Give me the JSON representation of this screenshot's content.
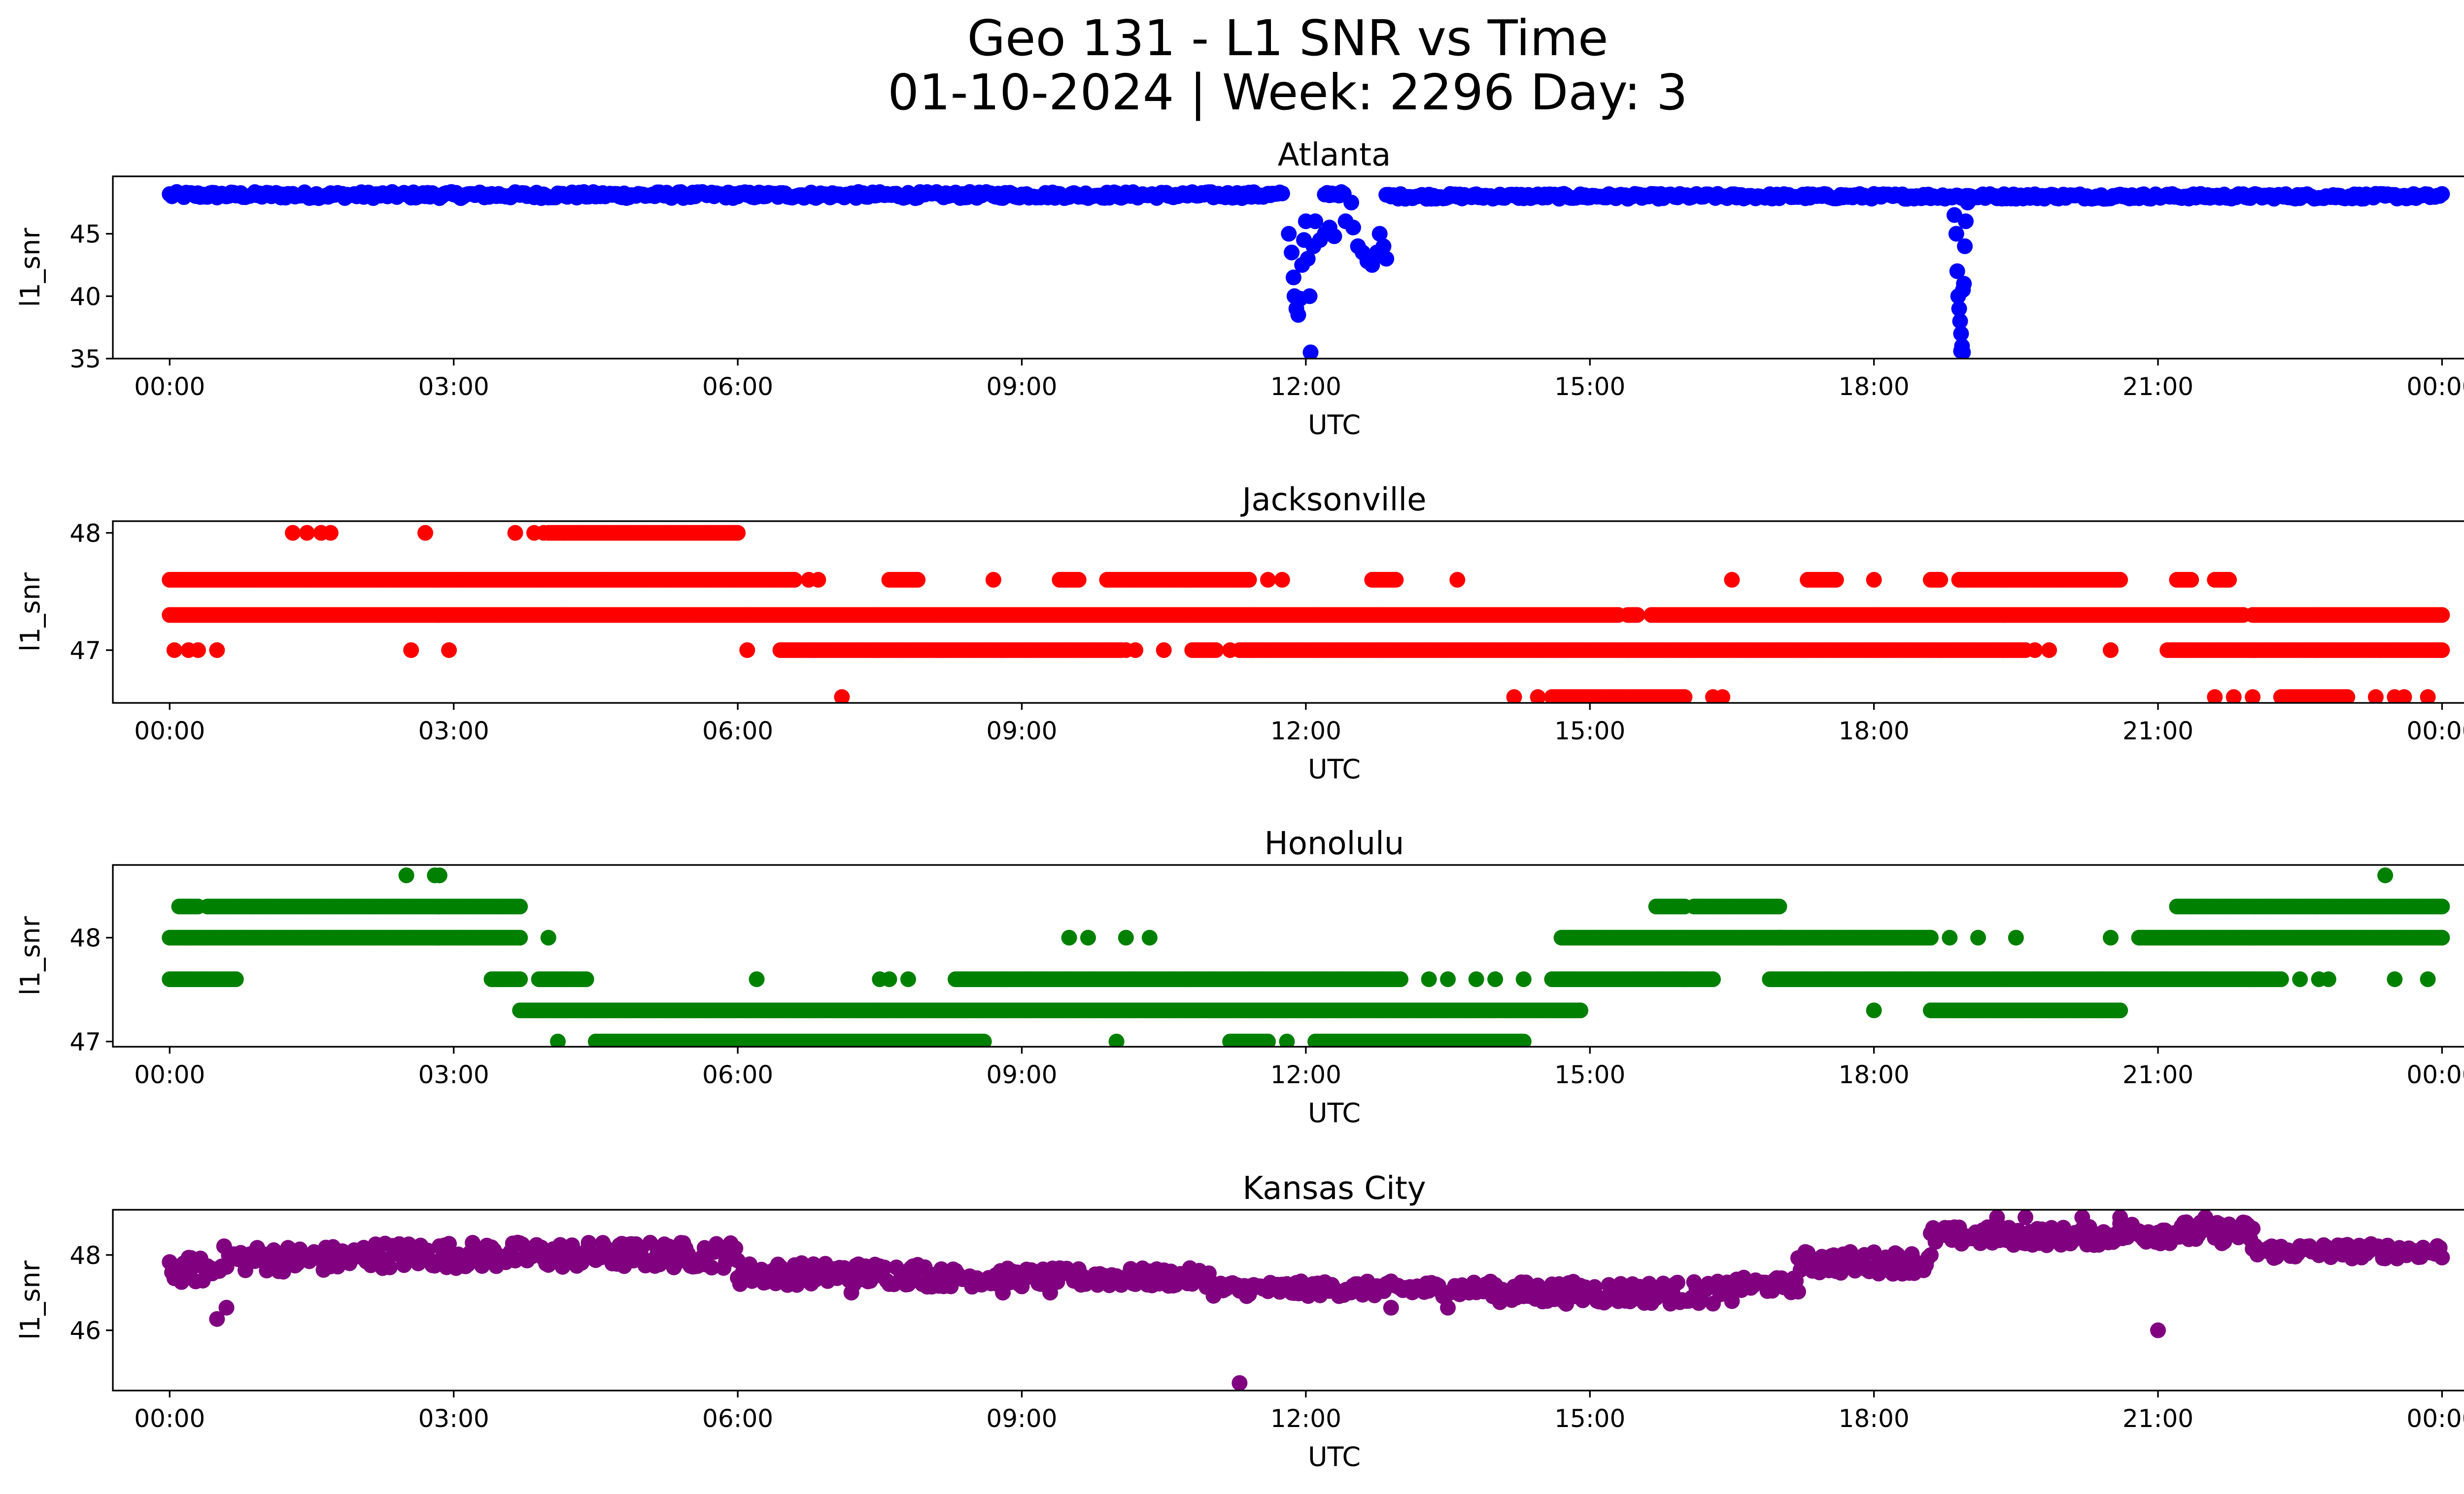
{
  "figure": {
    "title_line1": "Geo 131 - L1 SNR vs Time",
    "title_line2": "01-10-2024 | Week: 2296 Day: 3"
  },
  "chart_data": [
    {
      "type": "scatter",
      "title": "Atlanta",
      "xlabel": "UTC",
      "ylabel": "l1_snr",
      "color": "#0000ff",
      "x_unit": "hours UTC",
      "xlim": [
        -0.6,
        25.2
      ],
      "xticks": [
        0,
        3,
        6,
        9,
        12,
        15,
        18,
        21,
        24
      ],
      "xtick_labels": [
        "00:00",
        "03:00",
        "06:00",
        "09:00",
        "12:00",
        "15:00",
        "18:00",
        "21:00",
        "00:00"
      ],
      "ylim": [
        35,
        49.6
      ],
      "yticks": [
        35,
        40,
        45
      ],
      "ytick_labels": [
        "35",
        "40",
        "45"
      ],
      "segments": [
        {
          "x_start": 0.0,
          "x_end": 11.75,
          "y": 48.1,
          "spread": 0.5
        },
        {
          "x_start": 12.2,
          "x_end": 12.4,
          "y": 48.2,
          "spread": 0.3
        },
        {
          "x_start": 12.85,
          "x_end": 24.0,
          "y": 48.0,
          "spread": 0.4
        }
      ],
      "points": [
        [
          11.82,
          45.0
        ],
        [
          11.85,
          43.5
        ],
        [
          11.87,
          41.5
        ],
        [
          11.88,
          40.0
        ],
        [
          11.9,
          39.0
        ],
        [
          11.92,
          38.5
        ],
        [
          11.94,
          39.8
        ],
        [
          11.96,
          42.5
        ],
        [
          11.98,
          44.5
        ],
        [
          12.0,
          46.0
        ],
        [
          12.02,
          43.0
        ],
        [
          12.04,
          40.0
        ],
        [
          12.05,
          35.5
        ],
        [
          12.08,
          44.0
        ],
        [
          12.1,
          46.0
        ],
        [
          12.15,
          44.5
        ],
        [
          12.2,
          45.0
        ],
        [
          12.25,
          45.5
        ],
        [
          12.3,
          44.8
        ],
        [
          12.42,
          46.0
        ],
        [
          12.48,
          47.5
        ],
        [
          12.5,
          45.5
        ],
        [
          12.55,
          44.0
        ],
        [
          12.6,
          43.5
        ],
        [
          12.65,
          42.8
        ],
        [
          12.7,
          42.5
        ],
        [
          12.75,
          43.5
        ],
        [
          12.78,
          45.0
        ],
        [
          12.82,
          44.0
        ],
        [
          12.85,
          43.0
        ],
        [
          18.85,
          46.5
        ],
        [
          18.87,
          45.0
        ],
        [
          18.88,
          42.0
        ],
        [
          18.89,
          40.0
        ],
        [
          18.9,
          39.0
        ],
        [
          18.91,
          38.0
        ],
        [
          18.92,
          37.0
        ],
        [
          18.93,
          36.0
        ],
        [
          18.94,
          35.5
        ],
        [
          18.95,
          41.0
        ],
        [
          18.96,
          44.0
        ],
        [
          18.97,
          46.0
        ],
        [
          18.99,
          47.5
        ],
        [
          18.92,
          35.6
        ],
        [
          18.94,
          40.5
        ]
      ]
    },
    {
      "type": "scatter",
      "title": "Jacksonville",
      "xlabel": "UTC",
      "ylabel": "l1_snr",
      "color": "#ff0000",
      "x_unit": "hours UTC",
      "xlim": [
        -0.6,
        25.2
      ],
      "xticks": [
        0,
        3,
        6,
        9,
        12,
        15,
        18,
        21,
        24
      ],
      "xtick_labels": [
        "00:00",
        "03:00",
        "06:00",
        "09:00",
        "12:00",
        "15:00",
        "18:00",
        "21:00",
        "00:00"
      ],
      "ylim": [
        46.55,
        48.1
      ],
      "yticks": [
        47,
        48
      ],
      "ytick_labels": [
        "47",
        "48"
      ],
      "segments": [
        {
          "x_start": 0.0,
          "x_end": 6.6,
          "y": 47.6,
          "spread": 0
        },
        {
          "x_start": 7.6,
          "x_end": 7.9,
          "y": 47.6,
          "spread": 0
        },
        {
          "x_start": 9.4,
          "x_end": 9.6,
          "y": 47.6,
          "spread": 0
        },
        {
          "x_start": 9.9,
          "x_end": 11.4,
          "y": 47.6,
          "spread": 0
        },
        {
          "x_start": 12.7,
          "x_end": 12.95,
          "y": 47.6,
          "spread": 0
        },
        {
          "x_start": 17.3,
          "x_end": 17.6,
          "y": 47.6,
          "spread": 0
        },
        {
          "x_start": 18.6,
          "x_end": 18.7,
          "y": 47.6,
          "spread": 0
        },
        {
          "x_start": 18.9,
          "x_end": 20.6,
          "y": 47.6,
          "spread": 0
        },
        {
          "x_start": 21.2,
          "x_end": 21.35,
          "y": 47.6,
          "spread": 0
        },
        {
          "x_start": 21.6,
          "x_end": 21.75,
          "y": 47.6,
          "spread": 0
        },
        {
          "x_start": 0.0,
          "x_end": 15.3,
          "y": 47.3,
          "spread": 0
        },
        {
          "x_start": 15.4,
          "x_end": 15.5,
          "y": 47.3,
          "spread": 0
        },
        {
          "x_start": 15.65,
          "x_end": 21.9,
          "y": 47.3,
          "spread": 0
        },
        {
          "x_start": 22.0,
          "x_end": 24.0,
          "y": 47.3,
          "spread": 0
        },
        {
          "x_start": 6.45,
          "x_end": 10.05,
          "y": 47.0,
          "spread": 0
        },
        {
          "x_start": 10.8,
          "x_end": 11.05,
          "y": 47.0,
          "spread": 0
        },
        {
          "x_start": 11.3,
          "x_end": 19.6,
          "y": 47.0,
          "spread": 0
        },
        {
          "x_start": 21.1,
          "x_end": 24.0,
          "y": 47.0,
          "spread": 0
        },
        {
          "x_start": 4.0,
          "x_end": 6.0,
          "y": 48.0,
          "spread": 0
        },
        {
          "x_start": 22.3,
          "x_end": 23.0,
          "y": 46.6,
          "spread": 0
        },
        {
          "x_start": 14.6,
          "x_end": 16.0,
          "y": 46.6,
          "spread": 0
        }
      ],
      "points": [
        [
          1.3,
          48.0
        ],
        [
          1.45,
          48.0
        ],
        [
          1.6,
          48.0
        ],
        [
          1.7,
          48.0
        ],
        [
          2.7,
          48.0
        ],
        [
          3.65,
          48.0
        ],
        [
          3.85,
          48.0
        ],
        [
          3.95,
          48.0
        ],
        [
          0.05,
          47.0
        ],
        [
          0.2,
          47.0
        ],
        [
          0.3,
          47.0
        ],
        [
          0.5,
          47.0
        ],
        [
          2.55,
          47.0
        ],
        [
          2.95,
          47.0
        ],
        [
          6.1,
          47.0
        ],
        [
          10.1,
          47.0
        ],
        [
          10.2,
          47.0
        ],
        [
          10.5,
          47.0
        ],
        [
          11.2,
          47.0
        ],
        [
          19.7,
          47.0
        ],
        [
          19.85,
          47.0
        ],
        [
          20.5,
          47.0
        ],
        [
          6.75,
          47.6
        ],
        [
          6.85,
          47.6
        ],
        [
          8.7,
          47.6
        ],
        [
          11.6,
          47.6
        ],
        [
          11.75,
          47.6
        ],
        [
          13.6,
          47.6
        ],
        [
          16.5,
          47.6
        ],
        [
          18.0,
          47.6
        ],
        [
          7.1,
          46.6
        ],
        [
          14.2,
          46.6
        ],
        [
          14.45,
          46.6
        ],
        [
          16.3,
          46.6
        ],
        [
          16.4,
          46.6
        ],
        [
          21.6,
          46.6
        ],
        [
          21.8,
          46.6
        ],
        [
          22.0,
          46.6
        ],
        [
          23.3,
          46.6
        ],
        [
          23.5,
          46.6
        ],
        [
          23.6,
          46.6
        ],
        [
          23.85,
          46.6
        ]
      ]
    },
    {
      "type": "scatter",
      "title": "Honolulu",
      "xlabel": "UTC",
      "ylabel": "l1_snr",
      "color": "#008000",
      "x_unit": "hours UTC",
      "xlim": [
        -0.6,
        25.2
      ],
      "xticks": [
        0,
        3,
        6,
        9,
        12,
        15,
        18,
        21,
        24
      ],
      "xtick_labels": [
        "00:00",
        "03:00",
        "06:00",
        "09:00",
        "12:00",
        "15:00",
        "18:00",
        "21:00",
        "00:00"
      ],
      "ylim": [
        46.95,
        48.7
      ],
      "yticks": [
        47,
        48
      ],
      "ytick_labels": [
        "47",
        "48"
      ],
      "segments": [
        {
          "x_start": 0.0,
          "x_end": 3.7,
          "y": 48.0,
          "spread": 0
        },
        {
          "x_start": 0.1,
          "x_end": 0.3,
          "y": 48.3,
          "spread": 0
        },
        {
          "x_start": 0.4,
          "x_end": 3.7,
          "y": 48.3,
          "spread": 0
        },
        {
          "x_start": 0.0,
          "x_end": 0.7,
          "y": 47.6,
          "spread": 0
        },
        {
          "x_start": 3.4,
          "x_end": 3.7,
          "y": 47.6,
          "spread": 0
        },
        {
          "x_start": 3.9,
          "x_end": 4.4,
          "y": 47.6,
          "spread": 0
        },
        {
          "x_start": 3.7,
          "x_end": 14.9,
          "y": 47.3,
          "spread": 0
        },
        {
          "x_start": 4.5,
          "x_end": 8.6,
          "y": 47.0,
          "spread": 0
        },
        {
          "x_start": 8.3,
          "x_end": 13.0,
          "y": 47.6,
          "spread": 0
        },
        {
          "x_start": 11.2,
          "x_end": 11.6,
          "y": 47.0,
          "spread": 0
        },
        {
          "x_start": 12.1,
          "x_end": 14.3,
          "y": 47.0,
          "spread": 0
        },
        {
          "x_start": 14.6,
          "x_end": 16.3,
          "y": 47.6,
          "spread": 0
        },
        {
          "x_start": 14.7,
          "x_end": 17.0,
          "y": 48.0,
          "spread": 0
        },
        {
          "x_start": 15.7,
          "x_end": 16.0,
          "y": 48.3,
          "spread": 0
        },
        {
          "x_start": 16.1,
          "x_end": 17.0,
          "y": 48.3,
          "spread": 0
        },
        {
          "x_start": 17.0,
          "x_end": 18.6,
          "y": 48.0,
          "spread": 0
        },
        {
          "x_start": 16.9,
          "x_end": 22.3,
          "y": 47.6,
          "spread": 0
        },
        {
          "x_start": 18.6,
          "x_end": 20.6,
          "y": 47.3,
          "spread": 0
        },
        {
          "x_start": 20.8,
          "x_end": 24.0,
          "y": 48.0,
          "spread": 0
        },
        {
          "x_start": 21.2,
          "x_end": 24.0,
          "y": 48.3,
          "spread": 0
        }
      ],
      "points": [
        [
          2.5,
          48.6
        ],
        [
          2.8,
          48.6
        ],
        [
          2.85,
          48.6
        ],
        [
          23.4,
          48.6
        ],
        [
          4.1,
          47.0
        ],
        [
          10.0,
          47.0
        ],
        [
          11.8,
          47.0
        ],
        [
          4.0,
          48.0
        ],
        [
          6.2,
          47.6
        ],
        [
          7.5,
          47.6
        ],
        [
          7.6,
          47.6
        ],
        [
          7.8,
          47.6
        ],
        [
          9.5,
          48.0
        ],
        [
          9.7,
          48.0
        ],
        [
          10.1,
          48.0
        ],
        [
          10.35,
          48.0
        ],
        [
          13.3,
          47.6
        ],
        [
          13.5,
          47.6
        ],
        [
          13.8,
          47.6
        ],
        [
          14.0,
          47.6
        ],
        [
          14.3,
          47.6
        ],
        [
          16.0,
          47.6
        ],
        [
          18.0,
          47.3
        ],
        [
          18.8,
          48.0
        ],
        [
          19.1,
          48.0
        ],
        [
          19.5,
          48.0
        ],
        [
          20.5,
          48.0
        ],
        [
          22.5,
          47.6
        ],
        [
          22.7,
          47.6
        ],
        [
          22.8,
          47.6
        ],
        [
          23.5,
          47.6
        ],
        [
          23.85,
          47.6
        ]
      ]
    },
    {
      "type": "scatter",
      "title": "Kansas City",
      "xlabel": "UTC",
      "ylabel": "l1_snr",
      "color": "#800080",
      "x_unit": "hours UTC",
      "xlim": [
        -0.6,
        25.2
      ],
      "xticks": [
        0,
        3,
        6,
        9,
        12,
        15,
        18,
        21,
        24
      ],
      "xtick_labels": [
        "00:00",
        "03:00",
        "06:00",
        "09:00",
        "12:00",
        "15:00",
        "18:00",
        "21:00",
        "00:00"
      ],
      "ylim": [
        44.4,
        49.2
      ],
      "yticks": [
        46,
        48
      ],
      "ytick_labels": [
        "46",
        "48"
      ],
      "segments": [
        {
          "x_start": 0.0,
          "x_end": 0.5,
          "y": 47.6,
          "spread": 0.7
        },
        {
          "x_start": 0.5,
          "x_end": 2.0,
          "y": 47.9,
          "spread": 0.7
        },
        {
          "x_start": 2.0,
          "x_end": 6.0,
          "y": 48.0,
          "spread": 0.7
        },
        {
          "x_start": 6.0,
          "x_end": 8.0,
          "y": 47.5,
          "spread": 0.6
        },
        {
          "x_start": 8.0,
          "x_end": 11.0,
          "y": 47.4,
          "spread": 0.5
        },
        {
          "x_start": 11.0,
          "x_end": 14.0,
          "y": 47.1,
          "spread": 0.4
        },
        {
          "x_start": 14.0,
          "x_end": 16.5,
          "y": 47.0,
          "spread": 0.6
        },
        {
          "x_start": 16.5,
          "x_end": 17.2,
          "y": 47.2,
          "spread": 0.4
        },
        {
          "x_start": 17.2,
          "x_end": 18.6,
          "y": 47.8,
          "spread": 0.6
        },
        {
          "x_start": 18.6,
          "x_end": 20.5,
          "y": 48.5,
          "spread": 0.5
        },
        {
          "x_start": 20.5,
          "x_end": 22.0,
          "y": 48.6,
          "spread": 0.6
        },
        {
          "x_start": 22.0,
          "x_end": 24.0,
          "y": 48.1,
          "spread": 0.4
        }
      ],
      "points": [
        [
          0.5,
          46.3
        ],
        [
          0.6,
          46.6
        ],
        [
          11.3,
          44.6
        ],
        [
          21.0,
          46.0
        ],
        [
          12.9,
          46.6
        ],
        [
          13.5,
          46.6
        ],
        [
          19.3,
          49.0
        ],
        [
          19.6,
          49.0
        ],
        [
          20.2,
          49.0
        ],
        [
          20.6,
          49.0
        ],
        [
          21.5,
          49.0
        ],
        [
          7.2,
          47.0
        ],
        [
          8.8,
          47.0
        ],
        [
          9.3,
          47.0
        ]
      ]
    }
  ]
}
